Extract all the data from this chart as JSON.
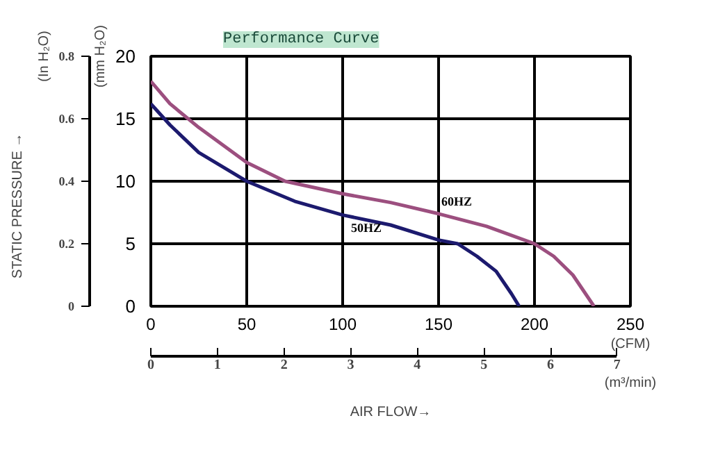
{
  "chart_data": {
    "type": "line",
    "title": "Performance Curve",
    "ylabel": "(mm H₂O)",
    "y2label": "(In H₂O)",
    "xlabel": "(CFM)",
    "x2label": "(m³/min)",
    "annotations": [
      "STATIC PRESSURE →",
      "AIR FLOW→"
    ],
    "xlim": [
      0,
      250
    ],
    "xticks": [
      0,
      50,
      100,
      150,
      200,
      250
    ],
    "x2lim": [
      0,
      7.2
    ],
    "x2ticks": [
      0,
      1,
      2,
      3,
      4,
      5,
      6,
      7
    ],
    "ylim": [
      0,
      20
    ],
    "yticks": [
      0,
      5,
      10,
      15,
      20
    ],
    "y2lim": [
      0,
      0.8
    ],
    "y2ticks": [
      0,
      0.2,
      0.4,
      0.6,
      0.8
    ],
    "grid": true,
    "marker": "none",
    "line_style": "solid",
    "series": [
      {
        "name": "60HZ",
        "color": "#9c4f7f",
        "x": [
          0,
          10,
          25,
          50,
          70,
          100,
          125,
          150,
          175,
          200,
          210,
          220,
          231
        ],
        "values": [
          18.0,
          16.2,
          14.3,
          11.5,
          10.0,
          9.0,
          8.3,
          7.4,
          6.4,
          5.0,
          4.0,
          2.5,
          0
        ]
      },
      {
        "name": "50HZ",
        "color": "#1c1a6e",
        "x": [
          0,
          10,
          25,
          50,
          75,
          100,
          125,
          150,
          160,
          170,
          180,
          188,
          192
        ],
        "values": [
          16.2,
          14.5,
          12.3,
          10.0,
          8.4,
          7.3,
          6.5,
          5.3,
          5.0,
          4.0,
          2.8,
          1.0,
          0
        ]
      }
    ]
  }
}
